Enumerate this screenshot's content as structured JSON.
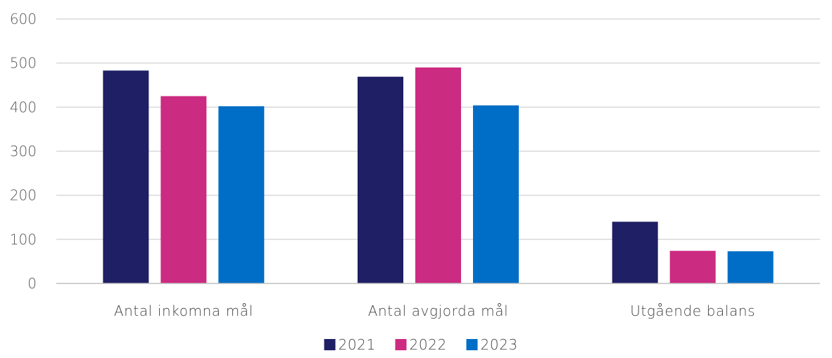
{
  "chart_data": {
    "type": "bar",
    "title": "",
    "xlabel": "",
    "ylabel": "",
    "categories": [
      "Antal inkomna mål",
      "Antal avgjorda mål",
      "Utgående balans"
    ],
    "series": [
      {
        "name": "2021",
        "values": [
          483,
          469,
          140
        ],
        "color": "#1f1f65"
      },
      {
        "name": "2022",
        "values": [
          425,
          490,
          74
        ],
        "color": "#cc2b82"
      },
      {
        "name": "2023",
        "values": [
          402,
          404,
          73
        ],
        "color": "#006ec6"
      }
    ],
    "ylim": [
      0,
      600
    ],
    "yticks": [
      0,
      100,
      200,
      300,
      400,
      500,
      600
    ],
    "grid": true,
    "legend_position": "bottom"
  }
}
